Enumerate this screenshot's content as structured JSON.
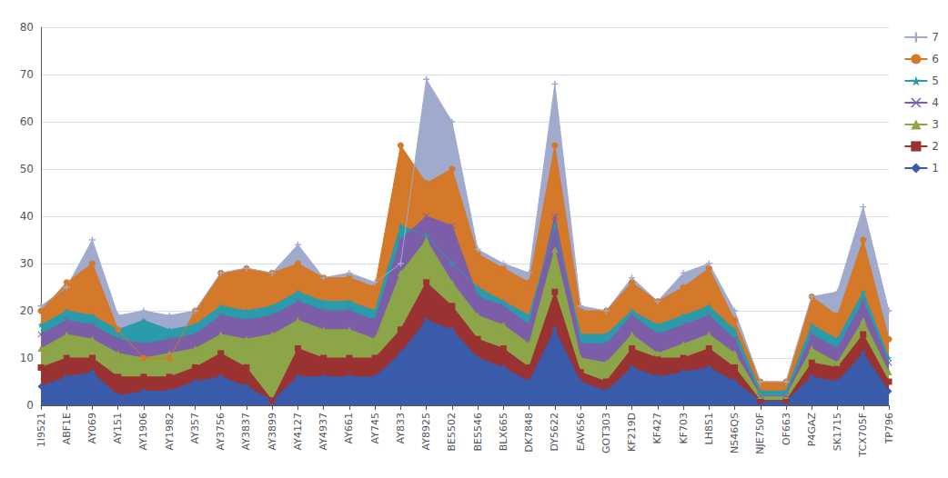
{
  "chart_data": {
    "type": "area",
    "categories": [
      "1I9521",
      "ABF1E",
      "AY069",
      "AY151",
      "AY1906",
      "AY1982",
      "AY357",
      "AY3756",
      "AY3837",
      "AY3899",
      "AY4127",
      "AY4937",
      "AY661",
      "AY745",
      "AY833",
      "AY8925",
      "BE5502",
      "BE5546",
      "BLX665",
      "DK7848",
      "DY5622",
      "EAV656",
      "GOT303",
      "KF219D",
      "KF427",
      "KF703",
      "LH851",
      "N546QS",
      "NJE750F",
      "OF663",
      "P4GAZ",
      "SK1715",
      "TCX705F",
      "TP796"
    ],
    "series": [
      {
        "name": "7",
        "color": "#A0AACC",
        "marker": "plus",
        "values": [
          21,
          25,
          35,
          19,
          20,
          19,
          20,
          28,
          29,
          28,
          34,
          27,
          28,
          26,
          30,
          69,
          60,
          33,
          30,
          28,
          68,
          21,
          20,
          27,
          22,
          28,
          30,
          20,
          5,
          5,
          23,
          24,
          42,
          20
        ]
      },
      {
        "name": "6",
        "color": "#D4782A",
        "marker": "circle",
        "values": [
          20,
          26,
          30,
          16,
          10,
          10,
          20,
          28,
          29,
          28,
          30,
          27,
          27,
          25,
          55,
          47,
          50,
          32,
          29,
          26,
          55,
          20,
          20,
          26,
          22,
          25,
          29,
          18,
          5,
          5,
          23,
          19,
          35,
          14
        ]
      },
      {
        "name": "5",
        "color": "#2A9BAA",
        "marker": "star",
        "values": [
          17,
          20,
          19,
          16,
          18,
          16,
          17,
          21,
          20,
          21,
          24,
          22,
          22,
          20,
          38,
          36,
          30,
          25,
          22,
          19,
          38,
          15,
          15,
          20,
          17,
          19,
          21,
          16,
          3,
          3,
          17,
          14,
          24,
          10
        ]
      },
      {
        "name": "4",
        "color": "#7B5EA7",
        "marker": "x",
        "values": [
          15,
          18,
          17,
          14,
          13,
          14,
          15,
          19,
          18,
          19,
          22,
          20,
          20,
          18,
          35,
          40,
          38,
          23,
          21,
          17,
          40,
          13,
          13,
          19,
          15,
          17,
          19,
          14,
          2,
          2,
          15,
          12,
          22,
          9
        ]
      },
      {
        "name": "3",
        "color": "#8BA548",
        "marker": "triangle",
        "values": [
          12,
          15,
          14,
          11,
          10,
          11,
          12,
          15,
          14,
          15,
          18,
          16,
          16,
          14,
          28,
          35,
          26,
          19,
          17,
          13,
          33,
          10,
          9,
          15,
          11,
          13,
          15,
          11,
          2,
          2,
          12,
          9,
          18,
          7
        ]
      },
      {
        "name": "2",
        "color": "#9B3232",
        "marker": "square",
        "values": [
          8,
          10,
          10,
          6,
          6,
          6,
          8,
          11,
          8,
          1,
          12,
          10,
          10,
          10,
          16,
          26,
          21,
          14,
          12,
          8,
          24,
          7,
          5,
          12,
          10,
          10,
          12,
          8,
          1,
          1,
          9,
          8,
          15,
          5
        ]
      },
      {
        "name": "1",
        "color": "#3A5BAA",
        "marker": "diamond",
        "values": [
          4,
          6,
          7,
          2,
          3,
          3,
          5,
          6,
          4,
          1,
          6,
          6,
          6,
          6,
          11,
          18,
          16,
          10,
          8,
          5,
          16,
          5,
          3,
          8,
          6,
          7,
          8,
          5,
          1,
          1,
          6,
          5,
          11,
          3
        ]
      }
    ],
    "ylim": [
      0,
      80
    ],
    "yticks": [
      0,
      10,
      20,
      30,
      40,
      50,
      60,
      70,
      80
    ],
    "grid": true,
    "legend": "upper right"
  }
}
